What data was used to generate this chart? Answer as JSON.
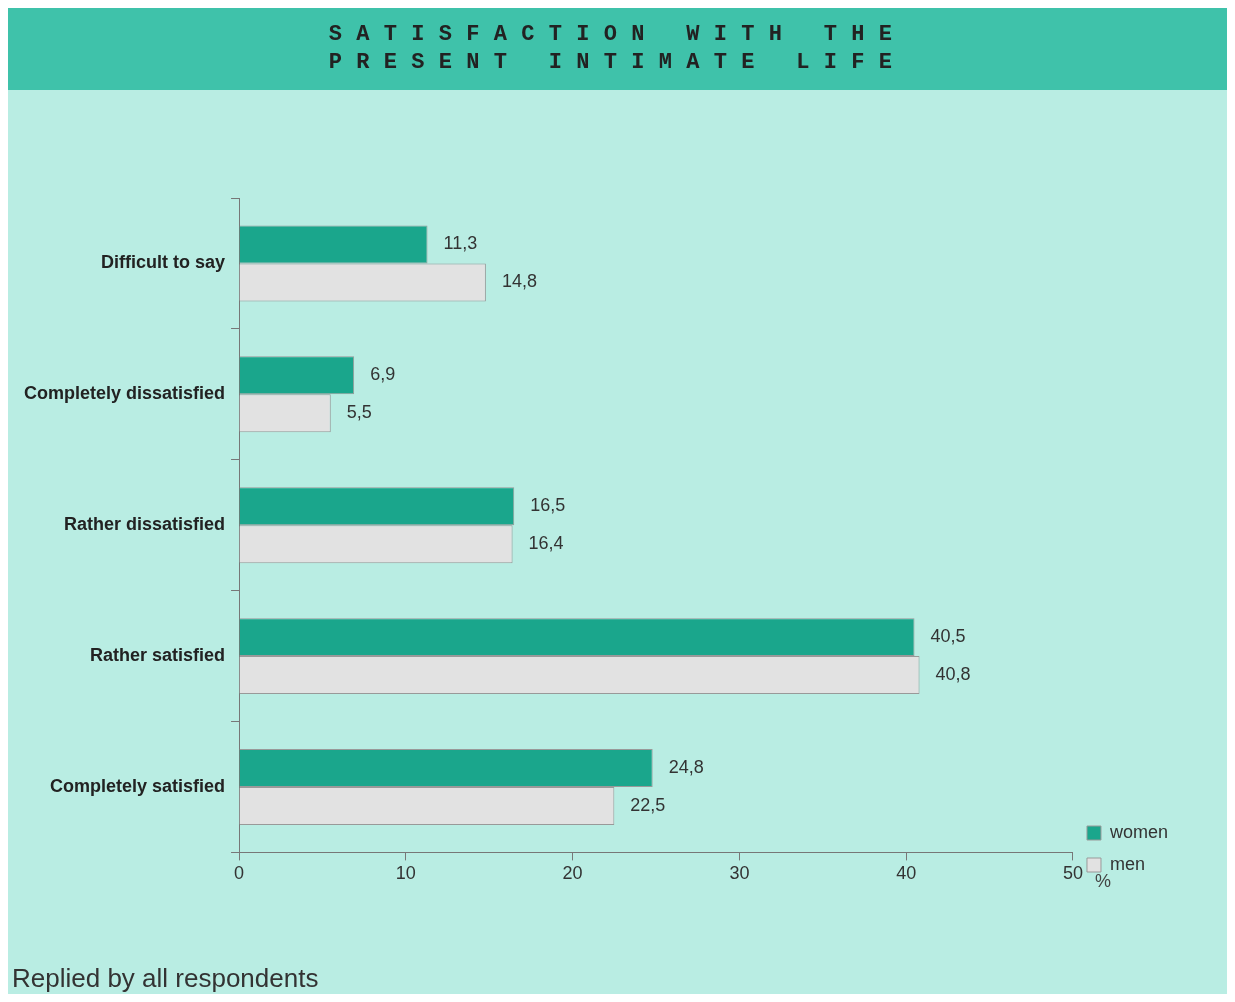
{
  "chart_data": {
    "type": "bar",
    "orientation": "horizontal",
    "title": "SATISFACTION WITH THE PRESENT INTIMATE LIFE",
    "xlabel": "%",
    "categories": [
      "Difficult to say",
      "Completely dissatisfied",
      "Rather dissatisfied",
      "Rather satisfied",
      "Completely satisfied"
    ],
    "series": [
      {
        "name": "women",
        "color": "#1aa68c",
        "values": [
          11.3,
          6.9,
          16.5,
          40.5,
          24.8
        ],
        "value_labels": [
          "11,3",
          "6,9",
          "16,5",
          "40,5",
          "24,8"
        ]
      },
      {
        "name": "men",
        "color": "#e2e2e2",
        "values": [
          14.8,
          5.5,
          16.4,
          40.8,
          22.5
        ],
        "value_labels": [
          "14,8",
          "5,5",
          "16,4",
          "40,8",
          "22,5"
        ]
      }
    ],
    "xlim": [
      0,
      50
    ],
    "xticks": [
      0,
      10,
      20,
      30,
      40,
      50
    ],
    "grid": false,
    "legend": "bottom right",
    "annotations": [
      "Replied by all respondents"
    ]
  }
}
